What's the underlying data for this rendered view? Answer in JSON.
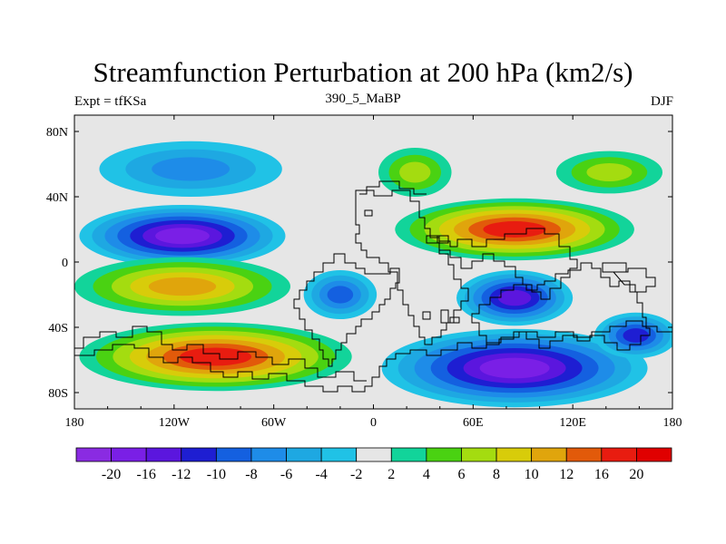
{
  "chart_data": {
    "type": "heatmap",
    "title": "Streamfunction Perturbation at 200 hPa (km2/s)",
    "subtitle_left": "Expt = tfKSa",
    "subtitle_center": "390_5_MaBP",
    "subtitle_right": "DJF",
    "xlim": [
      -180,
      180
    ],
    "ylim": [
      -90,
      90
    ],
    "x_ticks": [
      {
        "value": -180,
        "label": "180"
      },
      {
        "value": -120,
        "label": "120W"
      },
      {
        "value": -60,
        "label": "60W"
      },
      {
        "value": 0,
        "label": "0"
      },
      {
        "value": 60,
        "label": "60E"
      },
      {
        "value": 120,
        "label": "120E"
      },
      {
        "value": 180,
        "label": "180"
      }
    ],
    "y_ticks": [
      {
        "value": 80,
        "label": "80N"
      },
      {
        "value": 40,
        "label": "40N"
      },
      {
        "value": 0,
        "label": "0"
      },
      {
        "value": -40,
        "label": "40S"
      },
      {
        "value": -80,
        "label": "80S"
      }
    ],
    "levels": [
      "-20",
      "-16",
      "-12",
      "-10",
      "-8",
      "-6",
      "-4",
      "-2",
      "2",
      "4",
      "6",
      "8",
      "10",
      "12",
      "16",
      "20"
    ],
    "colors": [
      "#8a2be2",
      "#7a1fe6",
      "#5b16de",
      "#1e1ed2",
      "#1460e0",
      "#1e8ce8",
      "#1ea8e2",
      "#20c2e6",
      "#e6e6e6",
      "#12d49a",
      "#4ad212",
      "#a4dc10",
      "#d8cc0a",
      "#e0a50c",
      "#e25a0a",
      "#e81c10",
      "#e00000"
    ],
    "anomalies": [
      {
        "lon": -110,
        "lat": 57,
        "rlon": 55,
        "rlat": 17,
        "value": -8
      },
      {
        "lon": -115,
        "lat": 16,
        "rlon": 62,
        "rlat": 19,
        "value": -20
      },
      {
        "lon": -115,
        "lat": -15,
        "rlon": 65,
        "rlat": 18,
        "value": 10
      },
      {
        "lon": -95,
        "lat": -58,
        "rlon": 82,
        "rlat": 21,
        "value": 16
      },
      {
        "lon": 25,
        "lat": 55,
        "rlon": 22,
        "rlat": 15,
        "value": 6
      },
      {
        "lon": 142,
        "lat": 55,
        "rlon": 32,
        "rlat": 13,
        "value": 6
      },
      {
        "lon": 85,
        "lat": 20,
        "rlon": 72,
        "rlat": 19,
        "value": 16
      },
      {
        "lon": -20,
        "lat": -20,
        "rlon": 22,
        "rlat": 15,
        "value": -10
      },
      {
        "lon": 85,
        "lat": -22,
        "rlon": 35,
        "rlat": 17,
        "value": -16
      },
      {
        "lon": 85,
        "lat": -65,
        "rlon": 80,
        "rlat": 24,
        "value": -20
      },
      {
        "lon": 158,
        "lat": -45,
        "rlon": 25,
        "rlat": 14,
        "value": -12
      }
    ]
  }
}
